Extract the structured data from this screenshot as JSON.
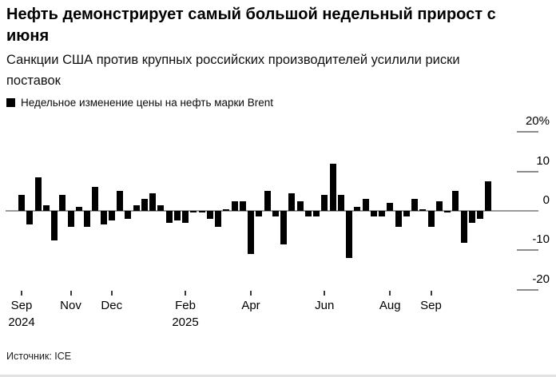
{
  "header": {
    "title_lines": [
      "Нефть демонстрирует самый большой недельный прирост с",
      "июня"
    ],
    "subtitle_lines": [
      "Санкции США против крупных российских производителей усилили риски",
      "поставок"
    ]
  },
  "legend": {
    "label": "Недельное изменение цены на нефть марки Brent",
    "swatch_color": "#000000"
  },
  "source": {
    "label": "Источник: ICE"
  },
  "colors": {
    "bar": "#000000",
    "zero_axis": "#9a9a9a",
    "y_tick_line": "#8c8c8c",
    "x_tick_mark": "#3a3a3a",
    "text": "#000000"
  },
  "chart_data": {
    "type": "bar",
    "title": "Нефть демонстрирует самый большой недельный прирост с июня",
    "subtitle": "Санкции США против крупных российских производителей усилили риски поставок",
    "series_name": "Недельное изменение цены на нефть марки Brent",
    "unit": "%",
    "x_period": "weekly, Sep 2024 – Oct 2025",
    "values": [
      4,
      -3.5,
      8.5,
      1.5,
      -7.5,
      4,
      -4,
      1,
      -4,
      6,
      -3.5,
      -2.5,
      5,
      -2,
      1.5,
      3,
      4.5,
      1.5,
      -3,
      -2.5,
      -3,
      -0.5,
      -0.5,
      -2,
      -4,
      0.5,
      2.5,
      2.5,
      -11,
      -1.5,
      5,
      -1.5,
      -8.5,
      4.5,
      2.5,
      -1.5,
      -1.5,
      4,
      12,
      4,
      -12,
      1,
      3,
      -1.5,
      -1.5,
      2,
      -4,
      -1.5,
      3,
      0.5,
      -4,
      2.5,
      -0.5,
      5,
      -8,
      -3,
      -2,
      7.5
    ],
    "x_ticks": [
      {
        "bar_index": 0,
        "label": "Sep",
        "sublabel": "2024"
      },
      {
        "bar_index": 6,
        "label": "Nov",
        "sublabel": ""
      },
      {
        "bar_index": 11,
        "label": "Dec",
        "sublabel": ""
      },
      {
        "bar_index": 20,
        "label": "Feb",
        "sublabel": "2025"
      },
      {
        "bar_index": 28,
        "label": "Apr",
        "sublabel": ""
      },
      {
        "bar_index": 37,
        "label": "Jun",
        "sublabel": ""
      },
      {
        "bar_index": 45,
        "label": "Aug",
        "sublabel": ""
      },
      {
        "bar_index": 50,
        "label": "Sep",
        "sublabel": ""
      }
    ],
    "y_ticks": [
      {
        "value": 20,
        "label": "20%"
      },
      {
        "value": 10,
        "label": "10"
      },
      {
        "value": 0,
        "label": "0"
      },
      {
        "value": -10,
        "label": "-10"
      },
      {
        "value": -20,
        "label": "-20"
      }
    ],
    "ylim": [
      -25,
      22
    ],
    "grid": "right-side tick segments only",
    "legend_position": "top-left"
  }
}
